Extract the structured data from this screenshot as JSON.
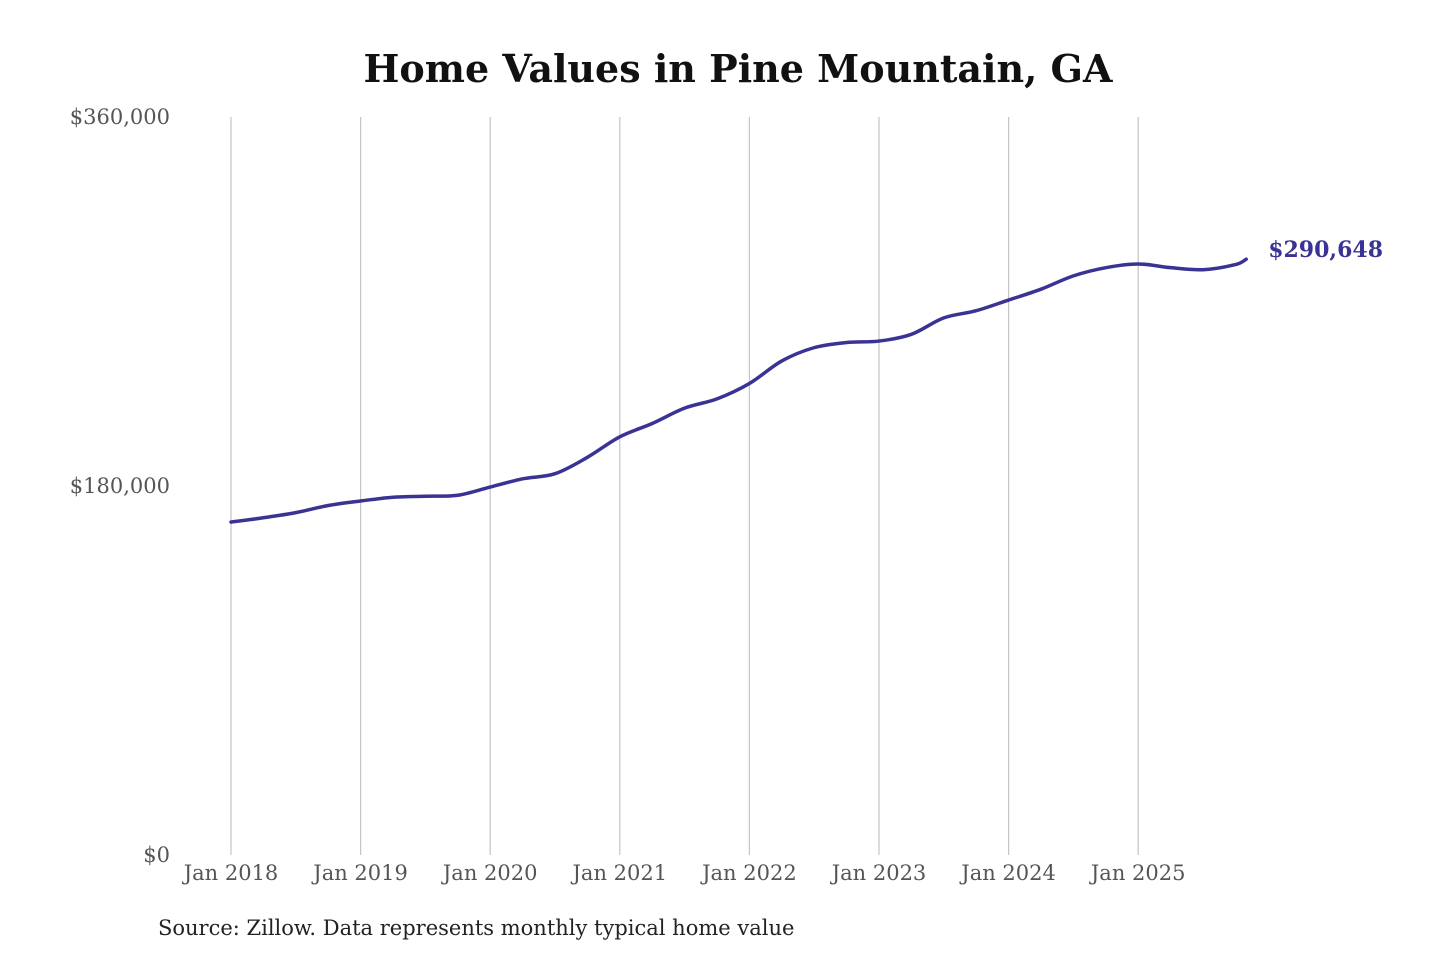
{
  "chart_data": {
    "type": "line",
    "title": "Home Values in Pine Mountain, GA",
    "xlabel": "",
    "ylabel": "",
    "ylim": [
      0,
      360000
    ],
    "y_ticks": [
      "$0",
      "$180,000",
      "$360,000"
    ],
    "y_tick_values": [
      0,
      180000,
      360000
    ],
    "x_ticks": [
      "Jan 2018",
      "Jan 2019",
      "Jan 2020",
      "Jan 2021",
      "Jan 2022",
      "Jan 2023",
      "Jan 2024",
      "Jan 2025"
    ],
    "grid": "vertical",
    "line_color": "#3a3393",
    "end_label": "$290,648",
    "series": [
      {
        "x": [
          "2018-01",
          "2018-04",
          "2018-07",
          "2018-10",
          "2019-01",
          "2019-04",
          "2019-07",
          "2019-10",
          "2020-01",
          "2020-04",
          "2020-07",
          "2020-10",
          "2021-01",
          "2021-04",
          "2021-07",
          "2021-10",
          "2022-01",
          "2022-04",
          "2022-07",
          "2022-10",
          "2023-01",
          "2023-04",
          "2023-07",
          "2023-10",
          "2024-01",
          "2024-04",
          "2024-07",
          "2024-10",
          "2025-01",
          "2025-04",
          "2025-07",
          "2025-10",
          "2025-11"
        ],
        "values": [
          162400,
          164500,
          167000,
          170500,
          172700,
          174500,
          175000,
          175500,
          179500,
          183500,
          186000,
          194000,
          204000,
          210500,
          218000,
          222500,
          230000,
          241000,
          247500,
          250000,
          250700,
          254000,
          262000,
          265500,
          270700,
          276000,
          282500,
          286500,
          288300,
          286500,
          285500,
          288000,
          290648
        ]
      }
    ]
  },
  "source": "Source: Zillow. Data represents monthly typical home value"
}
